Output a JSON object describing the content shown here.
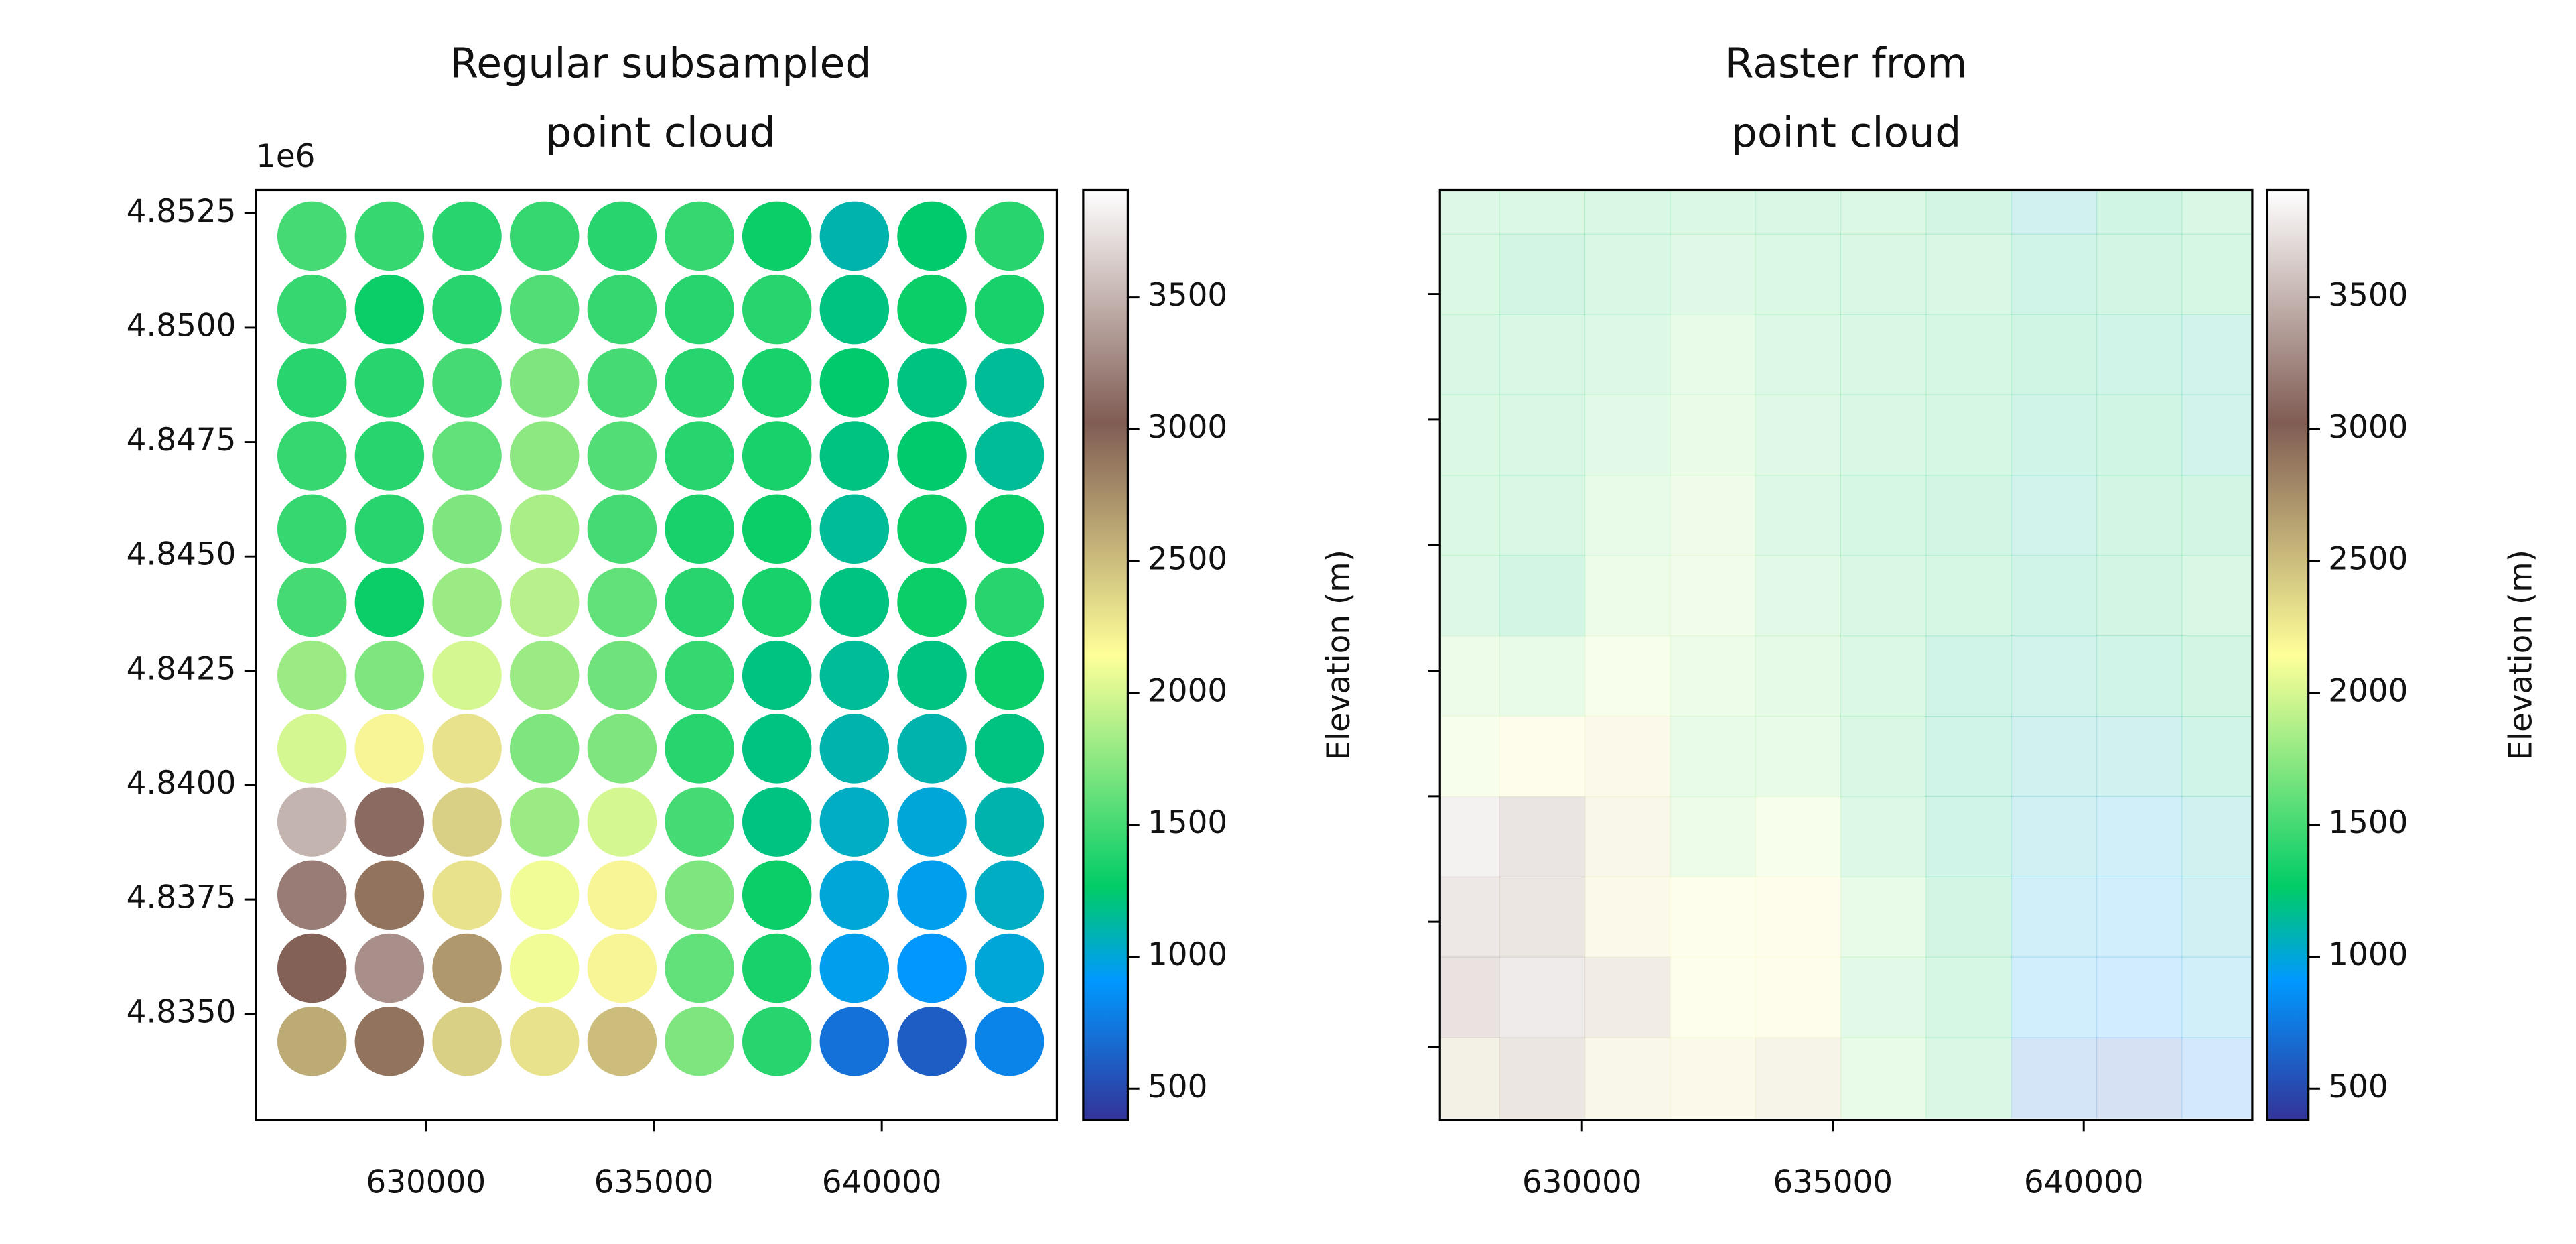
{
  "chart_data": [
    {
      "type": "scatter",
      "title": [
        "Regular subsampled",
        "point cloud"
      ],
      "offset_text": "1e6",
      "x": [
        627500,
        629200,
        630900,
        632600,
        634300,
        636000,
        637700,
        639400,
        641100,
        642800
      ],
      "y": [
        4852000,
        4850400,
        4848800,
        4847200,
        4845600,
        4844000,
        4842400,
        4840800,
        4839200,
        4837600,
        4836000,
        4834400
      ],
      "values": [
        [
          1500,
          1450,
          1400,
          1450,
          1400,
          1450,
          1300,
          1100,
          1250,
          1400
        ],
        [
          1450,
          1300,
          1400,
          1550,
          1450,
          1400,
          1400,
          1200,
          1300,
          1350
        ],
        [
          1400,
          1400,
          1500,
          1700,
          1500,
          1400,
          1350,
          1250,
          1200,
          1150
        ],
        [
          1450,
          1400,
          1600,
          1750,
          1550,
          1400,
          1350,
          1200,
          1250,
          1150
        ],
        [
          1450,
          1400,
          1700,
          1850,
          1500,
          1350,
          1300,
          1150,
          1300,
          1300
        ],
        [
          1500,
          1300,
          1800,
          1900,
          1600,
          1400,
          1350,
          1200,
          1300,
          1400
        ],
        [
          1800,
          1700,
          2000,
          1800,
          1650,
          1450,
          1200,
          1150,
          1200,
          1300
        ],
        [
          2000,
          2200,
          2300,
          1700,
          1700,
          1400,
          1200,
          1100,
          1100,
          1200
        ],
        [
          3500,
          3100,
          2400,
          1800,
          2000,
          1500,
          1200,
          1050,
          1000,
          1100
        ],
        [
          3200,
          2900,
          2300,
          2100,
          2200,
          1700,
          1300,
          1000,
          950,
          1050
        ],
        [
          3000,
          3300,
          2700,
          2100,
          2200,
          1600,
          1350,
          950,
          900,
          1000
        ],
        [
          2600,
          2900,
          2400,
          2300,
          2500,
          1700,
          1400,
          700,
          600,
          800
        ]
      ],
      "xlim": [
        626270,
        643840
      ],
      "ylim": [
        4832680,
        4853010
      ],
      "xticks": [
        630000,
        635000,
        640000
      ],
      "yticks": [
        {
          "value": 4835000,
          "label": "4.8350"
        },
        {
          "value": 4837500,
          "label": "4.8375"
        },
        {
          "value": 4840000,
          "label": "4.8400"
        },
        {
          "value": 4842500,
          "label": "4.8425"
        },
        {
          "value": 4845000,
          "label": "4.8450"
        },
        {
          "value": 4847500,
          "label": "4.8475"
        },
        {
          "value": 4850000,
          "label": "4.8500"
        },
        {
          "value": 4852500,
          "label": "4.8525"
        }
      ],
      "ytick_labels": true,
      "colorbar": {
        "label": "Elevation (m)",
        "lim": [
          381,
          3907
        ],
        "ticks": [
          500,
          1000,
          1500,
          2000,
          2500,
          3000,
          3500
        ]
      },
      "colormap": [
        "#333399",
        "#0099ff",
        "#00cc66",
        "#ffff99",
        "#805c54",
        "#ffffff"
      ],
      "colormap_stops": [
        0,
        0.15,
        0.25,
        0.5,
        0.75,
        1
      ]
    },
    {
      "type": "image",
      "title": [
        "Raster from",
        "point cloud"
      ],
      "x": [
        627500,
        629200,
        630900,
        632600,
        634300,
        636000,
        637700,
        639400,
        641100,
        642800
      ],
      "y": [
        4852000,
        4850400,
        4848800,
        4847200,
        4845600,
        4844000,
        4842400,
        4840800,
        4839200,
        4837600,
        4836000,
        4834400
      ],
      "values": [
        [
          1500,
          1450,
          1400,
          1450,
          1400,
          1450,
          1300,
          1100,
          1250,
          1400
        ],
        [
          1450,
          1300,
          1400,
          1550,
          1450,
          1400,
          1400,
          1200,
          1300,
          1350
        ],
        [
          1400,
          1400,
          1500,
          1700,
          1500,
          1400,
          1350,
          1250,
          1200,
          1150
        ],
        [
          1450,
          1400,
          1600,
          1750,
          1550,
          1400,
          1350,
          1200,
          1250,
          1150
        ],
        [
          1450,
          1400,
          1700,
          1850,
          1500,
          1350,
          1300,
          1150,
          1300,
          1300
        ],
        [
          1500,
          1300,
          1800,
          1900,
          1600,
          1400,
          1350,
          1200,
          1300,
          1400
        ],
        [
          1800,
          1700,
          2000,
          1800,
          1650,
          1450,
          1200,
          1150,
          1200,
          1300
        ],
        [
          2000,
          2200,
          2300,
          1700,
          1700,
          1400,
          1200,
          1100,
          1100,
          1200
        ],
        [
          3500,
          3100,
          2400,
          1800,
          2000,
          1500,
          1200,
          1050,
          1000,
          1100
        ],
        [
          3200,
          2900,
          2300,
          2100,
          2200,
          1700,
          1300,
          1000,
          950,
          1050
        ],
        [
          3000,
          3300,
          2700,
          2100,
          2200,
          1600,
          1350,
          950,
          900,
          1000
        ],
        [
          2600,
          2900,
          2400,
          2300,
          2500,
          1700,
          1400,
          700,
          600,
          800
        ]
      ],
      "xlim": [
        627170,
        643360
      ],
      "ylim": [
        4833550,
        4852070
      ],
      "xticks": [
        630000,
        635000,
        640000
      ],
      "yticks": [
        4835000,
        4837500,
        4840000,
        4842500,
        4845000,
        4847500,
        4850000
      ],
      "ytick_labels": false,
      "colorbar": {
        "label": "Elevation (m)",
        "lim": [
          381,
          3907
        ],
        "ticks": [
          500,
          1000,
          1500,
          2000,
          2500,
          3000,
          3500
        ]
      },
      "colormap": [
        "#333399",
        "#0099ff",
        "#00cc66",
        "#ffff99",
        "#805c54",
        "#ffffff"
      ],
      "colormap_stops": [
        0,
        0.15,
        0.25,
        0.5,
        0.75,
        1
      ]
    }
  ]
}
